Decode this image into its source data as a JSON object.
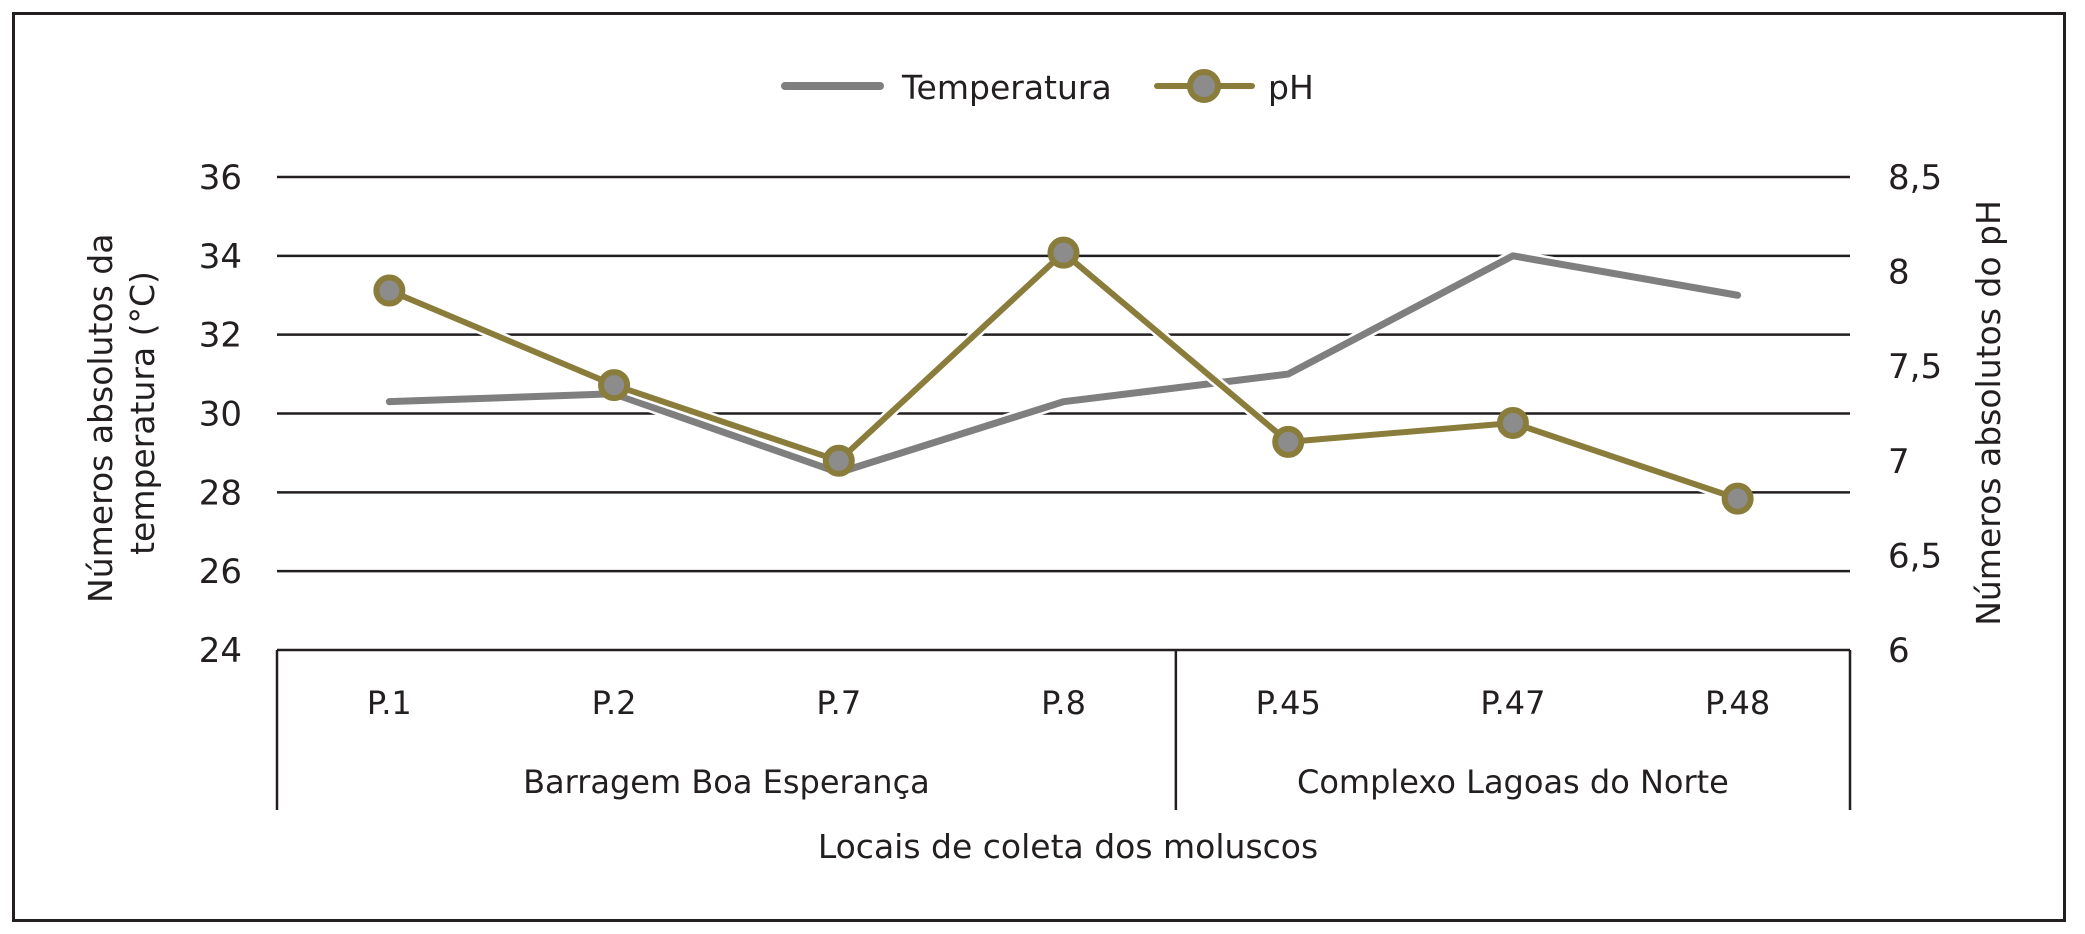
{
  "chart_data": {
    "type": "line",
    "categories": [
      "P.1",
      "P.2",
      "P.7",
      "P.8",
      "P.45",
      "P.47",
      "P.48"
    ],
    "groups": [
      {
        "label": "Barragem Boa Esperança",
        "categories": [
          "P.1",
          "P.2",
          "P.7",
          "P.8"
        ]
      },
      {
        "label": "Complexo Lagoas do Norte",
        "categories": [
          "P.45",
          "P.47",
          "P.48"
        ]
      }
    ],
    "series": [
      {
        "name": "Temperatura",
        "axis": "left",
        "color": "#7f7f7f",
        "values": [
          30.3,
          30.5,
          28.5,
          30.3,
          31.0,
          34.0,
          33.0
        ]
      },
      {
        "name": "pH",
        "axis": "right",
        "color": "#8a7d3c",
        "values": [
          7.9,
          7.4,
          7.0,
          8.1,
          7.1,
          7.2,
          6.8
        ]
      }
    ],
    "xlabel": "Locais de coleta dos moluscos",
    "ylabel_left": "Números absolutos da temperatura (°C)",
    "ylabel_left_lines": [
      "Números absolutos da",
      "temperatura (°C)"
    ],
    "ylabel_right": "Números absolutos do pH",
    "ylim_left": [
      24,
      36
    ],
    "yticks_left": [
      "24",
      "26",
      "28",
      "30",
      "32",
      "34",
      "36"
    ],
    "ylim_right": [
      6,
      8.5
    ],
    "yticks_right": [
      "6",
      "6,5",
      "7",
      "7,5",
      "8",
      "8,5"
    ],
    "grid": true,
    "legend": "top-center"
  }
}
